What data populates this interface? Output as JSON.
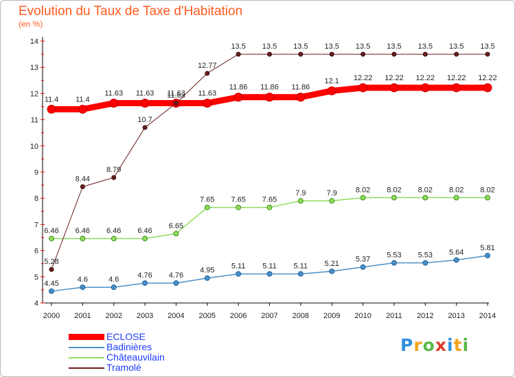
{
  "header": {
    "title": "Evolution du Taux de Taxe d'Habitation",
    "unit": "(en %)"
  },
  "brand": {
    "text": "Proxiti",
    "colors": [
      "#2f8fde",
      "#f2a31b",
      "#57b947",
      "#e03b2a",
      "#2f8fde",
      "#f2a31b",
      "#57b947"
    ]
  },
  "chart_data": {
    "type": "line",
    "title": "Evolution du Taux de Taxe d'Habitation",
    "ylabel": "(en %)",
    "xlabel": "",
    "x": [
      2000,
      2001,
      2002,
      2003,
      2004,
      2005,
      2006,
      2007,
      2008,
      2009,
      2010,
      2011,
      2012,
      2013,
      2014
    ],
    "ylim": [
      4,
      14
    ],
    "yticks": [
      4,
      5,
      6,
      7,
      8,
      9,
      10,
      11,
      12,
      13,
      14
    ],
    "grid": false,
    "legend_position": "bottom-left",
    "series": [
      {
        "name": "ECLOSE",
        "color": "#ff0000",
        "values": [
          11.4,
          11.4,
          11.63,
          11.63,
          11.63,
          11.63,
          11.86,
          11.86,
          11.86,
          12.1,
          12.22,
          12.22,
          12.22,
          12.22,
          12.22
        ],
        "labels": [
          "11.4",
          "11.4",
          "11.63",
          "11.63",
          "11.63",
          "11.63",
          "11.86",
          "11.86",
          "11.86",
          "12.1",
          "12.22",
          "12.22",
          "12.22",
          "12.22",
          "12.22"
        ]
      },
      {
        "name": "Badinières",
        "color": "#4a90c8",
        "values": [
          4.45,
          4.6,
          4.6,
          4.76,
          4.76,
          4.95,
          5.11,
          5.11,
          5.11,
          5.21,
          5.37,
          5.53,
          5.53,
          5.64,
          5.81
        ],
        "labels": [
          "4.45",
          "4.6",
          "4.6",
          "4.76",
          "4.76",
          "4.95",
          "5.11",
          "5.11",
          "5.11",
          "5.21",
          "5.37",
          "5.53",
          "5.53",
          "5.64",
          "5.81"
        ]
      },
      {
        "name": "Châteauvilain",
        "color": "#8fdc5a",
        "values": [
          6.46,
          6.46,
          6.46,
          6.46,
          6.65,
          7.65,
          7.65,
          7.65,
          7.9,
          7.9,
          8.02,
          8.02,
          8.02,
          8.02,
          8.02
        ],
        "labels": [
          "6.46",
          "6.46",
          "6.46",
          "6.46",
          "6.65",
          "7.65",
          "7.65",
          "7.65",
          "7.9",
          "7.9",
          "8.02",
          "8.02",
          "8.02",
          "8.02",
          "8.02"
        ]
      },
      {
        "name": "Tramolé",
        "color": "#6b1f1f",
        "values": [
          5.28,
          8.44,
          8.79,
          10.7,
          11.63,
          12.77,
          13.5,
          13.5,
          13.5,
          13.5,
          13.5,
          13.5,
          13.5,
          13.5,
          13.5
        ],
        "labels": [
          "5.28",
          "8.44",
          "8.79",
          "10.7",
          "11.63",
          "12.77",
          "13.5",
          "13.5",
          "13.5",
          "13.5",
          "13.5",
          "13.5",
          "13.5",
          "13.5",
          "13.5"
        ]
      }
    ]
  }
}
